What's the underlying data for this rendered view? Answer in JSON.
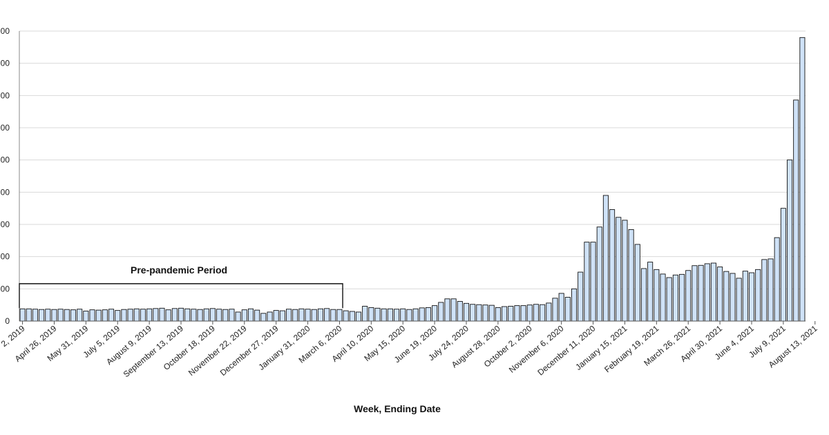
{
  "chart_data": {
    "type": "bar",
    "title": "",
    "xlabel": "Week, Ending Date",
    "ylabel": "",
    "ylim": [
      0,
      900
    ],
    "yticks": [
      0,
      100,
      200,
      300,
      400,
      500,
      600,
      700,
      800,
      900
    ],
    "ytick_labels": [
      "0",
      "00",
      "00",
      "00",
      "00",
      "00",
      "00",
      "00",
      "00",
      "00"
    ],
    "grid": true,
    "bar_color": "#cfe2f7",
    "bar_stroke": "#111111",
    "x_tick_labels": [
      {
        "index": 0,
        "label": "2, 2019"
      },
      {
        "index": 5,
        "label": "April 26, 2019"
      },
      {
        "index": 10,
        "label": "May 31, 2019"
      },
      {
        "index": 15,
        "label": "July 5, 2019"
      },
      {
        "index": 20,
        "label": "August 9, 2019"
      },
      {
        "index": 25,
        "label": "September 13, 2019"
      },
      {
        "index": 30,
        "label": "October 18, 2019"
      },
      {
        "index": 35,
        "label": "November 22, 2019"
      },
      {
        "index": 40,
        "label": "December 27, 2019"
      },
      {
        "index": 45,
        "label": "January 31, 2020"
      },
      {
        "index": 50,
        "label": "March 6, 2020"
      },
      {
        "index": 55,
        "label": "April 10, 2020"
      },
      {
        "index": 60,
        "label": "May 15, 2020"
      },
      {
        "index": 65,
        "label": "June 19, 2020"
      },
      {
        "index": 70,
        "label": "July 24, 2020"
      },
      {
        "index": 75,
        "label": "August 28, 2020"
      },
      {
        "index": 80,
        "label": "October 2, 2020"
      },
      {
        "index": 85,
        "label": "November 6, 2020"
      },
      {
        "index": 90,
        "label": "December 11, 2020"
      },
      {
        "index": 95,
        "label": "January 15, 2021"
      },
      {
        "index": 100,
        "label": "February 19, 2021"
      },
      {
        "index": 105,
        "label": "March 26, 2021"
      },
      {
        "index": 110,
        "label": "April 30, 2021"
      },
      {
        "index": 115,
        "label": "June 4, 2021"
      },
      {
        "index": 120,
        "label": "July 9, 2021"
      },
      {
        "index": 125,
        "label": "August 13, 2021"
      }
    ],
    "values": [
      38,
      38,
      37,
      36,
      37,
      36,
      37,
      36,
      35,
      37,
      31,
      35,
      34,
      35,
      37,
      33,
      36,
      37,
      38,
      37,
      38,
      39,
      40,
      35,
      39,
      40,
      38,
      37,
      36,
      38,
      39,
      37,
      36,
      37,
      28,
      35,
      38,
      34,
      24,
      28,
      33,
      32,
      37,
      36,
      38,
      37,
      36,
      38,
      39,
      36,
      36,
      32,
      30,
      28,
      46,
      42,
      40,
      38,
      38,
      37,
      38,
      36,
      38,
      41,
      42,
      48,
      58,
      69,
      69,
      61,
      55,
      52,
      51,
      50,
      49,
      42,
      45,
      46,
      48,
      48,
      50,
      52,
      51,
      56,
      71,
      86,
      74,
      100,
      152,
      245,
      245,
      292,
      390,
      346,
      322,
      313,
      284,
      238,
      163,
      183,
      160,
      146,
      135,
      143,
      145,
      157,
      172,
      173,
      178,
      180,
      168,
      154,
      148,
      133,
      155,
      150,
      160,
      191,
      193,
      259,
      350,
      500,
      686,
      880
    ],
    "annotations": [
      {
        "label": "Pre-pandemic Period",
        "start_index": 0,
        "end_index": 50,
        "bracket_value": 116
      }
    ]
  }
}
